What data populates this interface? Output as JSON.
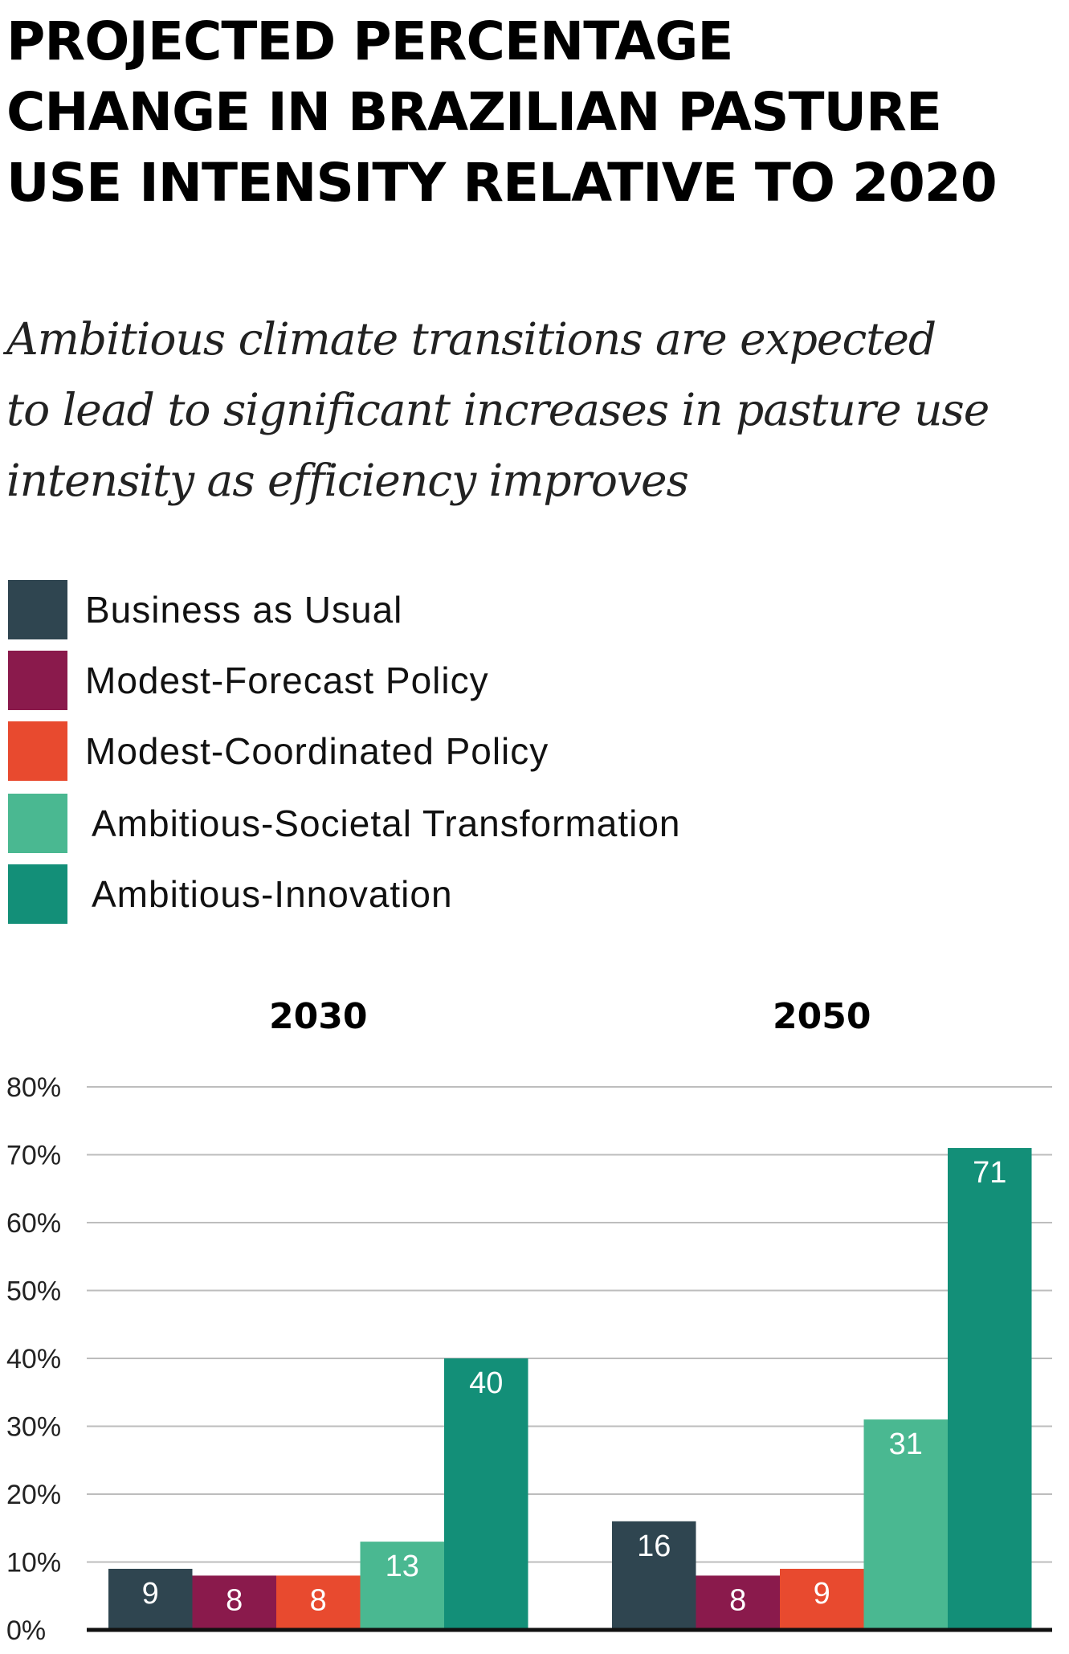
{
  "title": "PROJECTED PERCENTAGE\nCHANGE IN BRAZILIAN PASTURE\nUSE INTENSITY RELATIVE TO 2020",
  "subtitle": "Ambitious climate transitions are expected\nto lead to significant increases in pasture use\nintensity as efficiency improves",
  "chart_data": {
    "type": "bar",
    "categories": [
      "2030",
      "2050"
    ],
    "series": [
      {
        "name": "Business as Usual",
        "color": "#2f4550",
        "values": [
          9,
          16
        ]
      },
      {
        "name": "Modest-Forecast Policy",
        "color": "#8a1a4c",
        "values": [
          8,
          8
        ]
      },
      {
        "name": "Modest-Coordinated Policy",
        "color": "#e84a2f",
        "values": [
          8,
          9
        ]
      },
      {
        "name": "Ambitious-Societal Transformation",
        "color": "#4ab891",
        "values": [
          13,
          31
        ]
      },
      {
        "name": "Ambitious-Innovation",
        "color": "#138f78",
        "values": [
          40,
          71
        ]
      }
    ],
    "ylim": [
      0,
      80
    ],
    "yticks": [
      0,
      10,
      20,
      30,
      40,
      50,
      60,
      70,
      80
    ],
    "ytick_labels": [
      "0%",
      "10%",
      "20%",
      "30%",
      "40%",
      "50%",
      "60%",
      "70%",
      "80%"
    ],
    "grid": true,
    "legend_position": "top"
  }
}
